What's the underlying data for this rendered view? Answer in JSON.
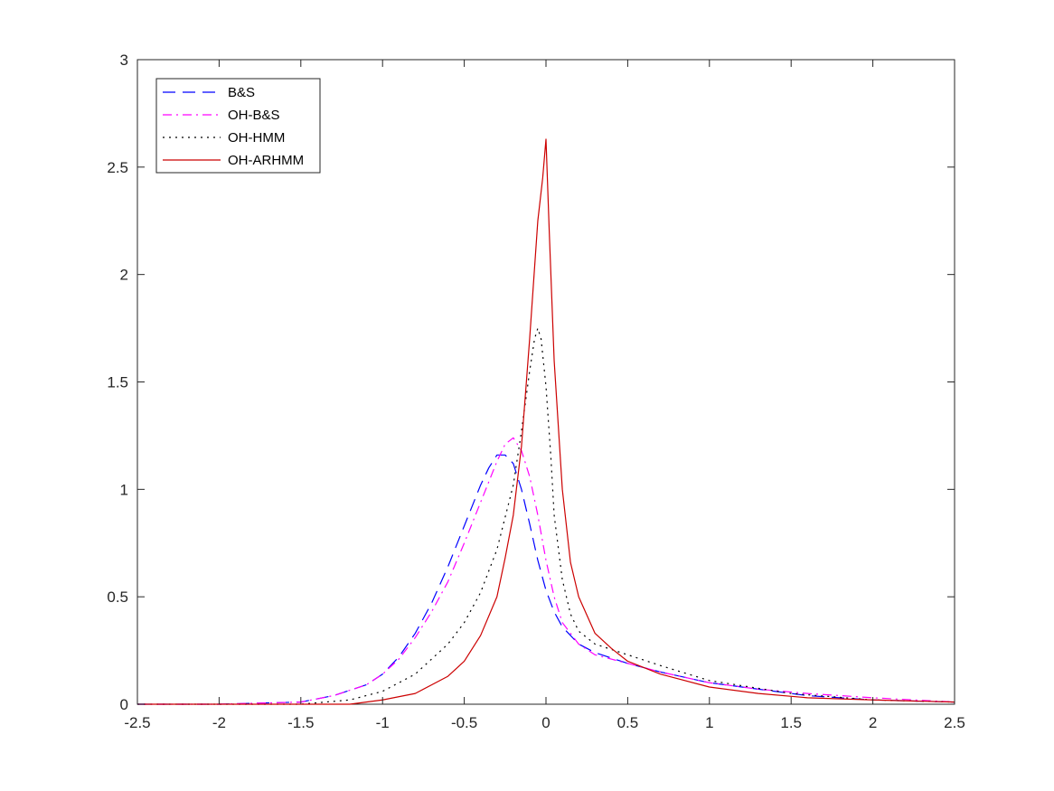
{
  "chart_data": {
    "type": "line",
    "title": "",
    "xlabel": "",
    "ylabel": "",
    "xlim": [
      -2.5,
      2.5
    ],
    "ylim": [
      0,
      3
    ],
    "xticks": [
      -2.5,
      -2,
      -1.5,
      -1,
      -0.5,
      0,
      0.5,
      1,
      1.5,
      2,
      2.5
    ],
    "xtick_labels": [
      "-2.5",
      "-2",
      "-1.5",
      "-1",
      "-0.5",
      "0",
      "0.5",
      "1",
      "1.5",
      "2",
      "2.5"
    ],
    "yticks": [
      0,
      0.5,
      1,
      1.5,
      2,
      2.5,
      3
    ],
    "ytick_labels": [
      "0",
      "0.5",
      "1",
      "1.5",
      "2",
      "2.5",
      "3"
    ],
    "grid": false,
    "legend_position": "top-left",
    "series": [
      {
        "name": "B&S",
        "color": "#0000ff",
        "dash": "long-dash",
        "x": [
          -2.5,
          -2.0,
          -1.5,
          -1.3,
          -1.1,
          -1.0,
          -0.9,
          -0.8,
          -0.7,
          -0.6,
          -0.5,
          -0.4,
          -0.35,
          -0.3,
          -0.25,
          -0.2,
          -0.15,
          -0.1,
          -0.05,
          0.0,
          0.05,
          0.1,
          0.2,
          0.3,
          0.5,
          0.7,
          1.0,
          1.3,
          1.6,
          2.0,
          2.5
        ],
        "y": [
          0.0,
          0.0,
          0.01,
          0.04,
          0.09,
          0.14,
          0.22,
          0.33,
          0.47,
          0.64,
          0.83,
          1.02,
          1.1,
          1.16,
          1.16,
          1.12,
          1.0,
          0.84,
          0.67,
          0.53,
          0.43,
          0.36,
          0.28,
          0.24,
          0.19,
          0.15,
          0.1,
          0.07,
          0.04,
          0.02,
          0.01
        ]
      },
      {
        "name": "OH-B&S",
        "color": "#ff00ff",
        "dash": "dash-dot",
        "x": [
          -2.5,
          -2.0,
          -1.5,
          -1.3,
          -1.1,
          -1.0,
          -0.9,
          -0.8,
          -0.7,
          -0.6,
          -0.5,
          -0.4,
          -0.3,
          -0.25,
          -0.2,
          -0.15,
          -0.1,
          -0.05,
          0.0,
          0.05,
          0.1,
          0.2,
          0.3,
          0.5,
          0.7,
          1.0,
          1.3,
          1.6,
          2.0,
          2.5
        ],
        "y": [
          0.0,
          0.0,
          0.01,
          0.04,
          0.09,
          0.14,
          0.21,
          0.31,
          0.43,
          0.57,
          0.75,
          0.94,
          1.13,
          1.21,
          1.24,
          1.18,
          1.06,
          0.88,
          0.67,
          0.5,
          0.38,
          0.28,
          0.23,
          0.19,
          0.15,
          0.1,
          0.07,
          0.05,
          0.03,
          0.01
        ]
      },
      {
        "name": "OH-HMM",
        "color": "#000000",
        "dash": "dotted",
        "x": [
          -2.5,
          -2.0,
          -1.5,
          -1.2,
          -1.0,
          -0.8,
          -0.6,
          -0.5,
          -0.4,
          -0.3,
          -0.2,
          -0.15,
          -0.1,
          -0.07,
          -0.05,
          -0.03,
          0.0,
          0.03,
          0.05,
          0.1,
          0.15,
          0.2,
          0.3,
          0.5,
          0.7,
          1.0,
          1.5,
          2.0,
          2.5
        ],
        "y": [
          0.0,
          0.0,
          0.0,
          0.02,
          0.06,
          0.14,
          0.28,
          0.38,
          0.52,
          0.72,
          1.02,
          1.27,
          1.55,
          1.7,
          1.75,
          1.7,
          1.48,
          1.15,
          0.88,
          0.58,
          0.42,
          0.34,
          0.28,
          0.23,
          0.18,
          0.11,
          0.05,
          0.02,
          0.01
        ]
      },
      {
        "name": "OH-ARHMM",
        "color": "#cc0000",
        "dash": "solid",
        "x": [
          -2.5,
          -2.0,
          -1.5,
          -1.2,
          -1.0,
          -0.8,
          -0.6,
          -0.5,
          -0.4,
          -0.3,
          -0.25,
          -0.2,
          -0.15,
          -0.1,
          -0.05,
          -0.02,
          0.0,
          0.02,
          0.05,
          0.1,
          0.15,
          0.2,
          0.3,
          0.4,
          0.5,
          0.7,
          1.0,
          1.3,
          1.6,
          2.0,
          2.5
        ],
        "y": [
          0.0,
          0.0,
          0.0,
          0.0,
          0.02,
          0.05,
          0.13,
          0.2,
          0.32,
          0.5,
          0.68,
          0.88,
          1.2,
          1.7,
          2.25,
          2.45,
          2.63,
          2.2,
          1.6,
          1.0,
          0.66,
          0.5,
          0.33,
          0.26,
          0.2,
          0.14,
          0.08,
          0.05,
          0.03,
          0.02,
          0.01
        ]
      }
    ]
  }
}
